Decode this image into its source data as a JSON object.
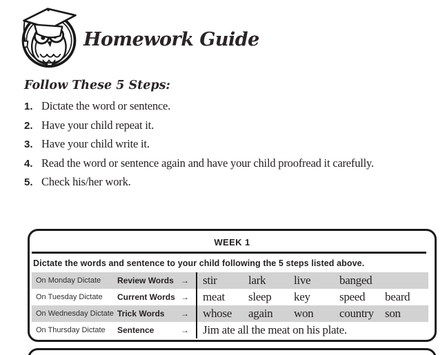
{
  "header": {
    "title": "Homework Guide",
    "logo": "owl-graduate-logo"
  },
  "steps": {
    "heading": "Follow These 5 Steps:",
    "items": [
      {
        "num": "1.",
        "text": "Dictate the word or sentence."
      },
      {
        "num": "2.",
        "text": "Have your child repeat it."
      },
      {
        "num": "3.",
        "text": "Have your child write it."
      },
      {
        "num": "4.",
        "text": "Read the word or sentence again and have your child proofread it carefully."
      },
      {
        "num": "5.",
        "text": "Check his/her work."
      }
    ]
  },
  "week1": {
    "title": "WEEK 1",
    "instruction": "Dictate the words and sentence to your child following the 5 steps listed above.",
    "arrow": "→",
    "rows": [
      {
        "day": "On Monday Dictate",
        "category": "Review Words",
        "words": [
          "stir",
          "lark",
          "live",
          "banged"
        ],
        "shaded": true
      },
      {
        "day": "On Tuesday Dictate",
        "category": "Current Words",
        "words": [
          "meat",
          "sleep",
          "key",
          "speed",
          "beard"
        ],
        "shaded": false
      },
      {
        "day": "On Wednesday Dictate",
        "category": "Trick Words",
        "words": [
          "whose",
          "again",
          "won",
          "country",
          "son"
        ],
        "shaded": true
      },
      {
        "day": "On Thursday Dictate",
        "category": "Sentence",
        "sentence": "Jim ate all the meat on his plate.",
        "shaded": false
      }
    ]
  },
  "colors": {
    "ink": "#231f20",
    "row_shade": "#d2d2d2",
    "border": "#1a1a1a"
  }
}
